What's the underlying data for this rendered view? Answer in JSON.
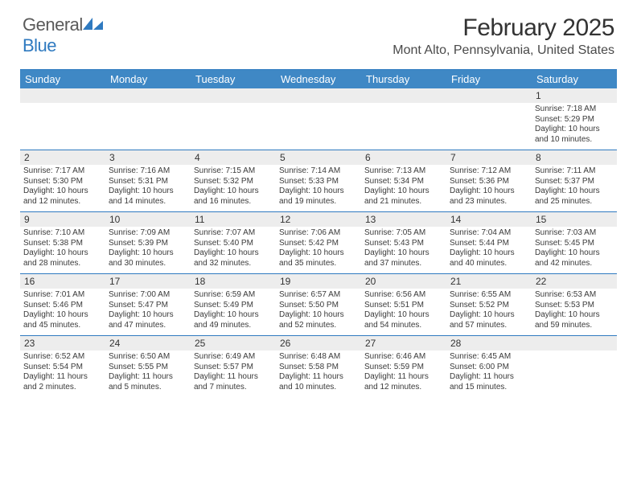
{
  "brand": {
    "text_general": "General",
    "text_blue": "Blue",
    "icon_color": "#2f7ac0"
  },
  "header": {
    "title": "February 2025",
    "location": "Mont Alto, Pennsylvania, United States"
  },
  "styling": {
    "header_bg": "#3f88c5",
    "header_text": "#ffffff",
    "divider_color": "#2f7ac0",
    "daynum_bg": "#ededed",
    "body_text": "#3a3a3a",
    "title_color": "#333333",
    "location_color": "#4a4a4a",
    "month_title_fontsize": 30,
    "location_fontsize": 16,
    "dow_fontsize": 13,
    "daynum_fontsize": 12,
    "cell_fontsize": 10,
    "page_bg": "#ffffff"
  },
  "days_of_week": [
    "Sunday",
    "Monday",
    "Tuesday",
    "Wednesday",
    "Thursday",
    "Friday",
    "Saturday"
  ],
  "weeks": [
    [
      {
        "n": "",
        "sunrise": "",
        "sunset": "",
        "daylight": ""
      },
      {
        "n": "",
        "sunrise": "",
        "sunset": "",
        "daylight": ""
      },
      {
        "n": "",
        "sunrise": "",
        "sunset": "",
        "daylight": ""
      },
      {
        "n": "",
        "sunrise": "",
        "sunset": "",
        "daylight": ""
      },
      {
        "n": "",
        "sunrise": "",
        "sunset": "",
        "daylight": ""
      },
      {
        "n": "",
        "sunrise": "",
        "sunset": "",
        "daylight": ""
      },
      {
        "n": "1",
        "sunrise": "Sunrise: 7:18 AM",
        "sunset": "Sunset: 5:29 PM",
        "daylight": "Daylight: 10 hours and 10 minutes."
      }
    ],
    [
      {
        "n": "2",
        "sunrise": "Sunrise: 7:17 AM",
        "sunset": "Sunset: 5:30 PM",
        "daylight": "Daylight: 10 hours and 12 minutes."
      },
      {
        "n": "3",
        "sunrise": "Sunrise: 7:16 AM",
        "sunset": "Sunset: 5:31 PM",
        "daylight": "Daylight: 10 hours and 14 minutes."
      },
      {
        "n": "4",
        "sunrise": "Sunrise: 7:15 AM",
        "sunset": "Sunset: 5:32 PM",
        "daylight": "Daylight: 10 hours and 16 minutes."
      },
      {
        "n": "5",
        "sunrise": "Sunrise: 7:14 AM",
        "sunset": "Sunset: 5:33 PM",
        "daylight": "Daylight: 10 hours and 19 minutes."
      },
      {
        "n": "6",
        "sunrise": "Sunrise: 7:13 AM",
        "sunset": "Sunset: 5:34 PM",
        "daylight": "Daylight: 10 hours and 21 minutes."
      },
      {
        "n": "7",
        "sunrise": "Sunrise: 7:12 AM",
        "sunset": "Sunset: 5:36 PM",
        "daylight": "Daylight: 10 hours and 23 minutes."
      },
      {
        "n": "8",
        "sunrise": "Sunrise: 7:11 AM",
        "sunset": "Sunset: 5:37 PM",
        "daylight": "Daylight: 10 hours and 25 minutes."
      }
    ],
    [
      {
        "n": "9",
        "sunrise": "Sunrise: 7:10 AM",
        "sunset": "Sunset: 5:38 PM",
        "daylight": "Daylight: 10 hours and 28 minutes."
      },
      {
        "n": "10",
        "sunrise": "Sunrise: 7:09 AM",
        "sunset": "Sunset: 5:39 PM",
        "daylight": "Daylight: 10 hours and 30 minutes."
      },
      {
        "n": "11",
        "sunrise": "Sunrise: 7:07 AM",
        "sunset": "Sunset: 5:40 PM",
        "daylight": "Daylight: 10 hours and 32 minutes."
      },
      {
        "n": "12",
        "sunrise": "Sunrise: 7:06 AM",
        "sunset": "Sunset: 5:42 PM",
        "daylight": "Daylight: 10 hours and 35 minutes."
      },
      {
        "n": "13",
        "sunrise": "Sunrise: 7:05 AM",
        "sunset": "Sunset: 5:43 PM",
        "daylight": "Daylight: 10 hours and 37 minutes."
      },
      {
        "n": "14",
        "sunrise": "Sunrise: 7:04 AM",
        "sunset": "Sunset: 5:44 PM",
        "daylight": "Daylight: 10 hours and 40 minutes."
      },
      {
        "n": "15",
        "sunrise": "Sunrise: 7:03 AM",
        "sunset": "Sunset: 5:45 PM",
        "daylight": "Daylight: 10 hours and 42 minutes."
      }
    ],
    [
      {
        "n": "16",
        "sunrise": "Sunrise: 7:01 AM",
        "sunset": "Sunset: 5:46 PM",
        "daylight": "Daylight: 10 hours and 45 minutes."
      },
      {
        "n": "17",
        "sunrise": "Sunrise: 7:00 AM",
        "sunset": "Sunset: 5:47 PM",
        "daylight": "Daylight: 10 hours and 47 minutes."
      },
      {
        "n": "18",
        "sunrise": "Sunrise: 6:59 AM",
        "sunset": "Sunset: 5:49 PM",
        "daylight": "Daylight: 10 hours and 49 minutes."
      },
      {
        "n": "19",
        "sunrise": "Sunrise: 6:57 AM",
        "sunset": "Sunset: 5:50 PM",
        "daylight": "Daylight: 10 hours and 52 minutes."
      },
      {
        "n": "20",
        "sunrise": "Sunrise: 6:56 AM",
        "sunset": "Sunset: 5:51 PM",
        "daylight": "Daylight: 10 hours and 54 minutes."
      },
      {
        "n": "21",
        "sunrise": "Sunrise: 6:55 AM",
        "sunset": "Sunset: 5:52 PM",
        "daylight": "Daylight: 10 hours and 57 minutes."
      },
      {
        "n": "22",
        "sunrise": "Sunrise: 6:53 AM",
        "sunset": "Sunset: 5:53 PM",
        "daylight": "Daylight: 10 hours and 59 minutes."
      }
    ],
    [
      {
        "n": "23",
        "sunrise": "Sunrise: 6:52 AM",
        "sunset": "Sunset: 5:54 PM",
        "daylight": "Daylight: 11 hours and 2 minutes."
      },
      {
        "n": "24",
        "sunrise": "Sunrise: 6:50 AM",
        "sunset": "Sunset: 5:55 PM",
        "daylight": "Daylight: 11 hours and 5 minutes."
      },
      {
        "n": "25",
        "sunrise": "Sunrise: 6:49 AM",
        "sunset": "Sunset: 5:57 PM",
        "daylight": "Daylight: 11 hours and 7 minutes."
      },
      {
        "n": "26",
        "sunrise": "Sunrise: 6:48 AM",
        "sunset": "Sunset: 5:58 PM",
        "daylight": "Daylight: 11 hours and 10 minutes."
      },
      {
        "n": "27",
        "sunrise": "Sunrise: 6:46 AM",
        "sunset": "Sunset: 5:59 PM",
        "daylight": "Daylight: 11 hours and 12 minutes."
      },
      {
        "n": "28",
        "sunrise": "Sunrise: 6:45 AM",
        "sunset": "Sunset: 6:00 PM",
        "daylight": "Daylight: 11 hours and 15 minutes."
      },
      {
        "n": "",
        "sunrise": "",
        "sunset": "",
        "daylight": ""
      }
    ]
  ]
}
